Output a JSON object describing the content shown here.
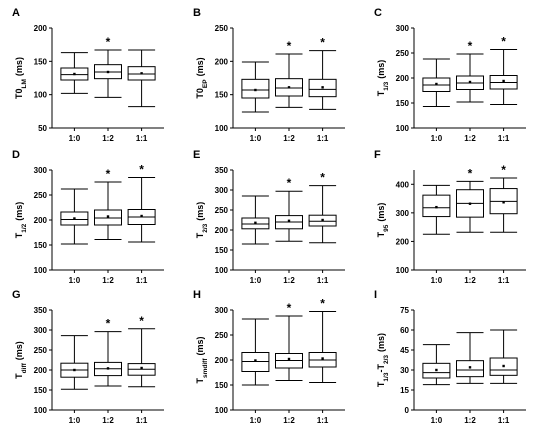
{
  "chart_data": [
    {
      "type": "box",
      "panel": "A",
      "ylabel": "T0_LM (ms)",
      "ylabel_main": "T0",
      "ylabel_sub": "LM",
      "ylabel_sup": "",
      "ylabel_unit": "(ms)",
      "ylim": [
        50,
        200
      ],
      "yticks": [
        50,
        100,
        150,
        200
      ],
      "categories": [
        "1:0",
        "1:2",
        "1:1"
      ],
      "boxes": [
        {
          "min": 102,
          "q1": 122,
          "median": 130,
          "q3": 140,
          "max": 163,
          "mean": 131,
          "sig": false
        },
        {
          "min": 96,
          "q1": 124,
          "median": 134,
          "q3": 145,
          "max": 167,
          "mean": 134,
          "sig": true
        },
        {
          "min": 82,
          "q1": 122,
          "median": 131,
          "q3": 142,
          "max": 167,
          "mean": 132,
          "sig": false
        }
      ]
    },
    {
      "type": "box",
      "panel": "B",
      "ylabel": "T0_EP (ms)",
      "ylabel_main": "T0",
      "ylabel_sub": "EP",
      "ylabel_sup": "",
      "ylabel_unit": "(ms)",
      "ylim": [
        100,
        250
      ],
      "yticks": [
        100,
        150,
        200,
        250
      ],
      "categories": [
        "1:0",
        "1:2",
        "1:1"
      ],
      "boxes": [
        {
          "min": 124,
          "q1": 145,
          "median": 157,
          "q3": 173,
          "max": 199,
          "mean": 157,
          "sig": false
        },
        {
          "min": 131,
          "q1": 148,
          "median": 160,
          "q3": 174,
          "max": 211,
          "mean": 161,
          "sig": true
        },
        {
          "min": 128,
          "q1": 147,
          "median": 158,
          "q3": 173,
          "max": 216,
          "mean": 161,
          "sig": true
        }
      ]
    },
    {
      "type": "box",
      "panel": "C",
      "ylabel": "T1/3 (ms)",
      "ylabel_main": "T",
      "ylabel_sub": "1/3",
      "ylabel_sup": "",
      "ylabel_unit": "(ms)",
      "ylim": [
        100,
        300
      ],
      "yticks": [
        100,
        150,
        200,
        250,
        300
      ],
      "categories": [
        "1:0",
        "1:2",
        "1:1"
      ],
      "boxes": [
        {
          "min": 143,
          "q1": 173,
          "median": 186,
          "q3": 200,
          "max": 238,
          "mean": 188,
          "sig": false
        },
        {
          "min": 152,
          "q1": 177,
          "median": 190,
          "q3": 204,
          "max": 248,
          "mean": 192,
          "sig": true
        },
        {
          "min": 147,
          "q1": 178,
          "median": 191,
          "q3": 205,
          "max": 257,
          "mean": 194,
          "sig": true
        }
      ]
    },
    {
      "type": "box",
      "panel": "D",
      "ylabel": "T1/2 (ms)",
      "ylabel_main": "T",
      "ylabel_sub": "1/2",
      "ylabel_sup": "",
      "ylabel_unit": "(ms)",
      "ylim": [
        100,
        300
      ],
      "yticks": [
        100,
        150,
        200,
        250,
        300
      ],
      "categories": [
        "1:0",
        "1:2",
        "1:1"
      ],
      "boxes": [
        {
          "min": 152,
          "q1": 190,
          "median": 201,
          "q3": 216,
          "max": 262,
          "mean": 203,
          "sig": false
        },
        {
          "min": 161,
          "q1": 190,
          "median": 204,
          "q3": 220,
          "max": 276,
          "mean": 207,
          "sig": true
        },
        {
          "min": 156,
          "q1": 191,
          "median": 206,
          "q3": 221,
          "max": 285,
          "mean": 208,
          "sig": true
        }
      ]
    },
    {
      "type": "box",
      "panel": "E",
      "ylabel": "T2/3 (ms)",
      "ylabel_main": "T",
      "ylabel_sub": "2/3",
      "ylabel_sup": "",
      "ylabel_unit": "(ms)",
      "ylim": [
        100,
        350
      ],
      "yticks": [
        100,
        150,
        200,
        250,
        300,
        350
      ],
      "categories": [
        "1:0",
        "1:2",
        "1:1"
      ],
      "boxes": [
        {
          "min": 165,
          "q1": 203,
          "median": 215,
          "q3": 230,
          "max": 285,
          "mean": 218,
          "sig": false
        },
        {
          "min": 172,
          "q1": 203,
          "median": 220,
          "q3": 236,
          "max": 297,
          "mean": 223,
          "sig": true
        },
        {
          "min": 168,
          "q1": 210,
          "median": 222,
          "q3": 237,
          "max": 311,
          "mean": 225,
          "sig": true
        }
      ]
    },
    {
      "type": "box",
      "panel": "F",
      "ylabel": "T95 (ms)",
      "ylabel_main": "T",
      "ylabel_sub": "95",
      "ylabel_sup": "",
      "ylabel_unit": "(ms)",
      "ylim": [
        100,
        450
      ],
      "yticks": [
        100,
        200,
        300,
        400
      ],
      "categories": [
        "1:0",
        "1:2",
        "1:1"
      ],
      "boxes": [
        {
          "min": 225,
          "q1": 287,
          "median": 318,
          "q3": 362,
          "max": 396,
          "mean": 320,
          "sig": false
        },
        {
          "min": 232,
          "q1": 285,
          "median": 333,
          "q3": 381,
          "max": 410,
          "mean": 332,
          "sig": true
        },
        {
          "min": 232,
          "q1": 297,
          "median": 340,
          "q3": 385,
          "max": 422,
          "mean": 337,
          "sig": true
        }
      ]
    },
    {
      "type": "box",
      "panel": "G",
      "ylabel": "Tdiff (ms)",
      "ylabel_main": "T",
      "ylabel_sub": "diff",
      "ylabel_sup": "",
      "ylabel_unit": "(ms)",
      "ylim": [
        100,
        350
      ],
      "yticks": [
        100,
        150,
        200,
        250,
        300,
        350
      ],
      "categories": [
        "1:0",
        "1:2",
        "1:1"
      ],
      "boxes": [
        {
          "min": 152,
          "q1": 182,
          "median": 200,
          "q3": 217,
          "max": 286,
          "mean": 200,
          "sig": false
        },
        {
          "min": 160,
          "q1": 186,
          "median": 203,
          "q3": 219,
          "max": 296,
          "mean": 204,
          "sig": true
        },
        {
          "min": 158,
          "q1": 187,
          "median": 202,
          "q3": 216,
          "max": 303,
          "mean": 205,
          "sig": true
        }
      ]
    },
    {
      "type": "box",
      "panel": "H",
      "ylabel": "Tsmdiff (ms)",
      "ylabel_main": "T",
      "ylabel_sub": "smdiff",
      "ylabel_sup": "",
      "ylabel_unit": "(ms)",
      "ylim": [
        100,
        300
      ],
      "yticks": [
        100,
        150,
        200,
        250,
        300
      ],
      "categories": [
        "1:0",
        "1:2",
        "1:1"
      ],
      "boxes": [
        {
          "min": 150,
          "q1": 177,
          "median": 197,
          "q3": 215,
          "max": 282,
          "mean": 199,
          "sig": false
        },
        {
          "min": 159,
          "q1": 184,
          "median": 199,
          "q3": 213,
          "max": 288,
          "mean": 202,
          "sig": true
        },
        {
          "min": 155,
          "q1": 186,
          "median": 200,
          "q3": 215,
          "max": 297,
          "mean": 203,
          "sig": true
        }
      ]
    },
    {
      "type": "box",
      "panel": "I",
      "ylabel": "T1/3-T2/3 (ms)",
      "ylabel_main": "T",
      "ylabel_sub": "1/3",
      "ylabel_sup": "-T",
      "ylabel_sub2": "2/3",
      "ylabel_unit": "(ms)",
      "ylim": [
        0,
        75
      ],
      "yticks": [
        0,
        15,
        30,
        45,
        60,
        75
      ],
      "categories": [
        "1:0",
        "1:2",
        "1:1"
      ],
      "boxes": [
        {
          "min": 19,
          "q1": 24,
          "median": 28,
          "q3": 35,
          "max": 49,
          "mean": 30,
          "sig": false
        },
        {
          "min": 20,
          "q1": 25,
          "median": 30,
          "q3": 37,
          "max": 58,
          "mean": 32,
          "sig": false
        },
        {
          "min": 20,
          "q1": 26,
          "median": 30,
          "q3": 39,
          "max": 60,
          "mean": 33,
          "sig": false
        }
      ]
    }
  ],
  "significance_marker": "*",
  "colors": {
    "axis": "#000000",
    "box": "#000000",
    "background": "#ffffff"
  }
}
